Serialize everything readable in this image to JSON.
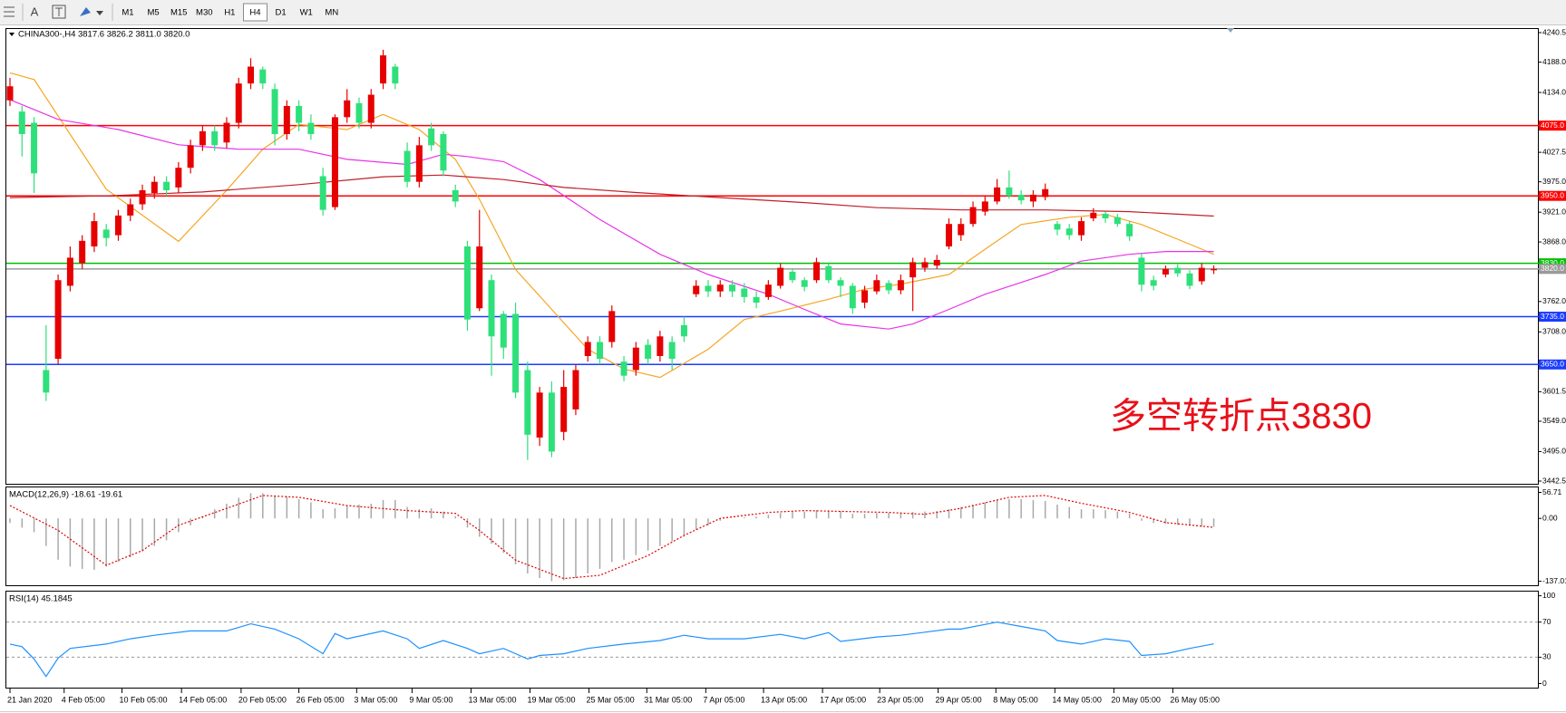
{
  "toolbar": {
    "tools": [
      "A"
    ],
    "timeframes": [
      "M1",
      "M5",
      "M15",
      "M30",
      "H1",
      "H4",
      "D1",
      "W1",
      "MN"
    ],
    "active": "H4"
  },
  "chart_data": [
    {
      "type": "candlestick",
      "title": "CHINA300-,H4 3817.6 3826.2 3811.0 3820.0",
      "xlim": [
        0,
        127
      ],
      "ylim": [
        3442.5,
        4240.5
      ],
      "yticks": [
        4240.5,
        {
          "value": 4188,
          "label": "4188.0"
        },
        {
          "value": 4134,
          "label": "4134.0"
        },
        4027.5,
        {
          "value": 3975,
          "label": "3975.0"
        },
        {
          "value": 3921,
          "label": "3921.0"
        },
        {
          "value": 3868,
          "label": "3868.0"
        },
        {
          "value": 3762,
          "label": "3762.0"
        },
        {
          "value": 3708,
          "label": "3708.0"
        },
        3601.5,
        {
          "value": 3549,
          "label": "3549.0"
        },
        {
          "value": 3495,
          "label": "3495.0"
        },
        3442.5
      ],
      "up_color": "#e60000",
      "down_color": "#2ee07a",
      "open": [
        4120,
        4100,
        4080,
        3640,
        3660,
        3790,
        3830,
        3860,
        3890,
        3880,
        3915,
        3935,
        3955,
        3975,
        3965,
        4000,
        4040,
        4065,
        4045,
        4080,
        4150,
        4175,
        4140,
        4060,
        4110,
        4080,
        3985,
        3930,
        4090,
        4115,
        4080,
        4150,
        4180,
        4030,
        3975,
        4070,
        4060,
        3960,
        3860,
        3750,
        3800,
        3740,
        3740,
        3640,
        3520,
        3600,
        3530,
        3570,
        3665,
        3690,
        3690,
        3655,
        3640,
        3685,
        3665,
        3690,
        3720,
        3775,
        3790,
        3780,
        3792,
        3785,
        3770,
        3770,
        3790,
        3815,
        3800,
        3800,
        3825,
        3800,
        3790,
        3760,
        3780,
        3795,
        3782,
        3805,
        3822,
        3826,
        3860,
        3880,
        3900,
        3922,
        3940,
        3965,
        3952,
        3940,
        3948,
        3900,
        3892,
        3880,
        3910,
        3918,
        3912,
        3900,
        3840,
        3800,
        3810,
        3822,
        3812,
        3798,
        3817.6
      ],
      "high": [
        4160,
        4110,
        4090,
        3720,
        3810,
        3860,
        3880,
        3920,
        3900,
        3925,
        3945,
        3970,
        3985,
        3985,
        4010,
        4050,
        4075,
        4075,
        4090,
        4160,
        4195,
        4180,
        4150,
        4120,
        4120,
        4095,
        4000,
        4095,
        4140,
        4125,
        4140,
        4210,
        4185,
        4045,
        4055,
        4080,
        4065,
        3970,
        3870,
        3925,
        3810,
        3745,
        3760,
        3655,
        3610,
        3620,
        3640,
        3650,
        3700,
        3700,
        3755,
        3665,
        3690,
        3695,
        3710,
        3700,
        3735,
        3800,
        3800,
        3800,
        3800,
        3795,
        3780,
        3800,
        3830,
        3820,
        3805,
        3840,
        3830,
        3805,
        3795,
        3790,
        3810,
        3800,
        3810,
        3840,
        3840,
        3845,
        3910,
        3910,
        3940,
        3950,
        3980,
        3995,
        3960,
        3960,
        3972,
        3905,
        3900,
        3912,
        3928,
        3922,
        3918,
        3905,
        3848,
        3808,
        3826,
        3828,
        3818,
        3830,
        3826.2
      ],
      "low": [
        4110,
        4020,
        3955,
        3585,
        3650,
        3780,
        3820,
        3850,
        3860,
        3870,
        3905,
        3925,
        3945,
        3950,
        3955,
        3990,
        4030,
        4030,
        4035,
        4070,
        4140,
        4140,
        4040,
        4050,
        4065,
        4050,
        3915,
        3925,
        4080,
        4070,
        4070,
        4140,
        4140,
        3965,
        3965,
        4030,
        3985,
        3930,
        3710,
        3745,
        3630,
        3660,
        3590,
        3480,
        3505,
        3485,
        3515,
        3560,
        3655,
        3650,
        3680,
        3620,
        3630,
        3650,
        3655,
        3640,
        3690,
        3770,
        3770,
        3770,
        3770,
        3760,
        3750,
        3765,
        3785,
        3795,
        3780,
        3795,
        3795,
        3770,
        3740,
        3750,
        3775,
        3775,
        3775,
        3745,
        3815,
        3820,
        3855,
        3870,
        3895,
        3915,
        3935,
        3945,
        3935,
        3930,
        3942,
        3880,
        3872,
        3870,
        3905,
        3902,
        3895,
        3870,
        3780,
        3782,
        3805,
        3806,
        3784,
        3792,
        3811
      ],
      "close": [
        4145,
        4060,
        3990,
        3600,
        3800,
        3840,
        3870,
        3905,
        3875,
        3915,
        3935,
        3960,
        3975,
        3960,
        4000,
        4040,
        4065,
        4040,
        4080,
        4150,
        4180,
        4150,
        4060,
        4110,
        4080,
        4060,
        3925,
        4090,
        4120,
        4080,
        4130,
        4200,
        4150,
        3975,
        4040,
        4040,
        3995,
        3940,
        3730,
        3860,
        3700,
        3680,
        3600,
        3525,
        3600,
        3495,
        3610,
        3640,
        3690,
        3660,
        3745,
        3630,
        3680,
        3660,
        3700,
        3660,
        3700,
        3790,
        3780,
        3792,
        3780,
        3770,
        3760,
        3792,
        3822,
        3800,
        3788,
        3832,
        3800,
        3790,
        3750,
        3782,
        3800,
        3782,
        3800,
        3832,
        3832,
        3836,
        3900,
        3900,
        3930,
        3940,
        3965,
        3950,
        3942,
        3952,
        3962,
        3890,
        3880,
        3905,
        3920,
        3910,
        3900,
        3878,
        3792,
        3790,
        3820,
        3812,
        3790,
        3822,
        3820
      ],
      "lines": [
        {
          "color": "#f5a623",
          "x": [
            0,
            2,
            8,
            14,
            18,
            21,
            24,
            28,
            31,
            34,
            37,
            39,
            42,
            45,
            48,
            51,
            54,
            58,
            61,
            64,
            68,
            71,
            74,
            78,
            81,
            84,
            88,
            91,
            94,
            98,
            100
          ],
          "values": [
            4169,
            4157,
            3962,
            3869,
            3960,
            4033,
            4077,
            4068,
            4095,
            4068,
            4015,
            3944,
            3819,
            3748,
            3677,
            3642,
            3627,
            3677,
            3730,
            3745,
            3766,
            3784,
            3793,
            3810,
            3855,
            3899,
            3912,
            3917,
            3899,
            3864,
            3846
          ]
        },
        {
          "color": "#e833e8",
          "x": [
            0,
            4,
            9,
            14,
            19,
            24,
            28,
            33,
            36,
            38,
            41,
            44,
            49,
            54,
            58,
            63,
            66,
            69,
            73,
            75,
            78,
            81,
            86,
            89,
            93,
            96,
            100
          ],
          "values": [
            4121,
            4086,
            4068,
            4041,
            4033,
            4033,
            4015,
            4006,
            4024,
            4020,
            4011,
            3979,
            3908,
            3846,
            3810,
            3775,
            3748,
            3722,
            3713,
            3722,
            3748,
            3775,
            3810,
            3834,
            3846,
            3851,
            3851
          ]
        },
        {
          "color": "#c0202a",
          "x": [
            0,
            8,
            16,
            24,
            31,
            36,
            41,
            46,
            52,
            59,
            66,
            72,
            79,
            86,
            93,
            100
          ],
          "values": [
            3947,
            3950,
            3957,
            3970,
            3984,
            3987,
            3979,
            3965,
            3956,
            3947,
            3938,
            3929,
            3925,
            3925,
            3922,
            3914
          ]
        }
      ],
      "hlines": [
        {
          "value": 4075,
          "label": "4075.0",
          "color": "#ff0000"
        },
        {
          "value": 3950,
          "label": "3950.0",
          "color": "#ff0000"
        },
        {
          "value": 3830,
          "label": "3830.0",
          "color": "#00c000"
        },
        {
          "value": 3820,
          "label": "3820.0",
          "color": "#9a9a9a"
        },
        {
          "value": 3735,
          "label": "3735.0",
          "color": "#1a3cff"
        },
        {
          "value": 3650,
          "label": "3650.0",
          "color": "#1a3cff"
        }
      ],
      "annotation": {
        "text": "多空转折点3830",
        "color": "#e8101a"
      }
    },
    {
      "type": "macd",
      "title": "MACD(12,26,9) -18.61 -19.61",
      "xlim": [
        0,
        127
      ],
      "ylim": [
        -137.01,
        56.71
      ],
      "yticks": [
        56.71,
        {
          "value": 0,
          "label": "0.00"
        },
        -137.01
      ],
      "histogram": {
        "color": "#a9a9a9",
        "values": [
          -10,
          -20,
          -30,
          -60,
          -90,
          -105,
          -110,
          -112,
          -105,
          -95,
          -85,
          -72,
          -60,
          -48,
          -30,
          -15,
          5,
          20,
          32,
          45,
          55,
          55,
          50,
          48,
          42,
          35,
          20,
          22,
          28,
          30,
          32,
          40,
          40,
          25,
          20,
          22,
          15,
          5,
          -20,
          -40,
          -55,
          -75,
          -100,
          -120,
          -130,
          -137,
          -135,
          -130,
          -120,
          -110,
          -95,
          -90,
          -80,
          -70,
          -60,
          -50,
          -40,
          -25,
          -15,
          -5,
          0,
          2,
          4,
          8,
          12,
          15,
          15,
          18,
          18,
          16,
          10,
          10,
          12,
          12,
          12,
          14,
          15,
          16,
          20,
          25,
          30,
          35,
          40,
          42,
          42,
          40,
          38,
          30,
          25,
          20,
          20,
          18,
          15,
          10,
          -5,
          -10,
          -12,
          -14,
          -16,
          -18,
          -18.61
        ]
      },
      "signal": {
        "color": "#e00000",
        "x": [
          0,
          4,
          8,
          11,
          14,
          18,
          21,
          24,
          28,
          33,
          37,
          39,
          42,
          46,
          49,
          53,
          56,
          59,
          63,
          66,
          73,
          76,
          79,
          83,
          86,
          89,
          93,
          96,
          100
        ],
        "values": [
          28,
          -26,
          -102,
          -70,
          -15,
          22,
          50,
          46,
          28,
          17,
          11,
          -26,
          -91,
          -131,
          -124,
          -81,
          -37,
          0,
          13,
          17,
          13,
          9,
          22,
          46,
          50,
          33,
          13,
          -9,
          -19.61
        ]
      }
    },
    {
      "type": "rsi",
      "title": "RSI(14) 45.1845",
      "xlim": [
        0,
        127
      ],
      "ylim": [
        0,
        100
      ],
      "yticks": [
        100,
        70,
        30,
        0
      ],
      "levels": [
        70,
        30
      ],
      "color": "#1e90ff",
      "x": [
        0,
        1,
        2,
        3,
        4,
        5,
        8,
        10,
        12,
        15,
        18,
        20,
        22,
        24,
        26,
        27,
        28,
        31,
        33,
        34,
        36,
        38,
        39,
        41,
        43,
        44,
        46,
        48,
        51,
        54,
        56,
        58,
        61,
        64,
        66,
        68,
        69,
        72,
        74,
        78,
        79,
        82,
        84,
        86,
        87,
        89,
        91,
        93,
        94,
        96,
        98,
        100
      ],
      "values": [
        45,
        42,
        28,
        8,
        29,
        40,
        45,
        51,
        55,
        60,
        60,
        68,
        62,
        51,
        34,
        57,
        51,
        60,
        51,
        40,
        49,
        40,
        34,
        40,
        28,
        32,
        34,
        40,
        45,
        49,
        55,
        51,
        51,
        56,
        51,
        58,
        48,
        53,
        55,
        62,
        62,
        70,
        65,
        60,
        49,
        45,
        51,
        48,
        32,
        34,
        40,
        45.1845
      ],
      "xticks": [
        {
          "value": 0,
          "label": "21 Jan 2020"
        },
        {
          "value": 4.5,
          "label": "4 Feb 05:00"
        },
        {
          "value": 9.3,
          "label": "10 Feb 05:00"
        },
        {
          "value": 14.25,
          "label": "14 Feb 05:00"
        },
        {
          "value": 19.2,
          "label": "20 Feb 05:00"
        },
        {
          "value": 24,
          "label": "26 Feb 05:00"
        },
        {
          "value": 28.8,
          "label": "3 Mar 05:00"
        },
        {
          "value": 33.4,
          "label": "9 Mar 05:00"
        },
        {
          "value": 38.3,
          "label": "13 Mar 05:00"
        },
        {
          "value": 43.2,
          "label": "19 Mar 05:00"
        },
        {
          "value": 48.1,
          "label": "25 Mar 05:00"
        },
        {
          "value": 52.9,
          "label": "31 Mar 05:00"
        },
        {
          "value": 57.8,
          "label": "7 Apr 05:00"
        },
        {
          "value": 62.6,
          "label": "13 Apr 05:00"
        },
        {
          "value": 67.5,
          "label": "17 Apr 05:00"
        },
        {
          "value": 72.25,
          "label": "23 Apr 05:00"
        },
        {
          "value": 77.1,
          "label": "29 Apr 05:00"
        },
        {
          "value": 81.9,
          "label": "8 May 05:00"
        },
        {
          "value": 86.8,
          "label": "14 May 05:00"
        },
        {
          "value": 91.7,
          "label": "20 May 05:00"
        },
        {
          "value": 96.6,
          "label": "26 May 05:00"
        }
      ]
    }
  ]
}
